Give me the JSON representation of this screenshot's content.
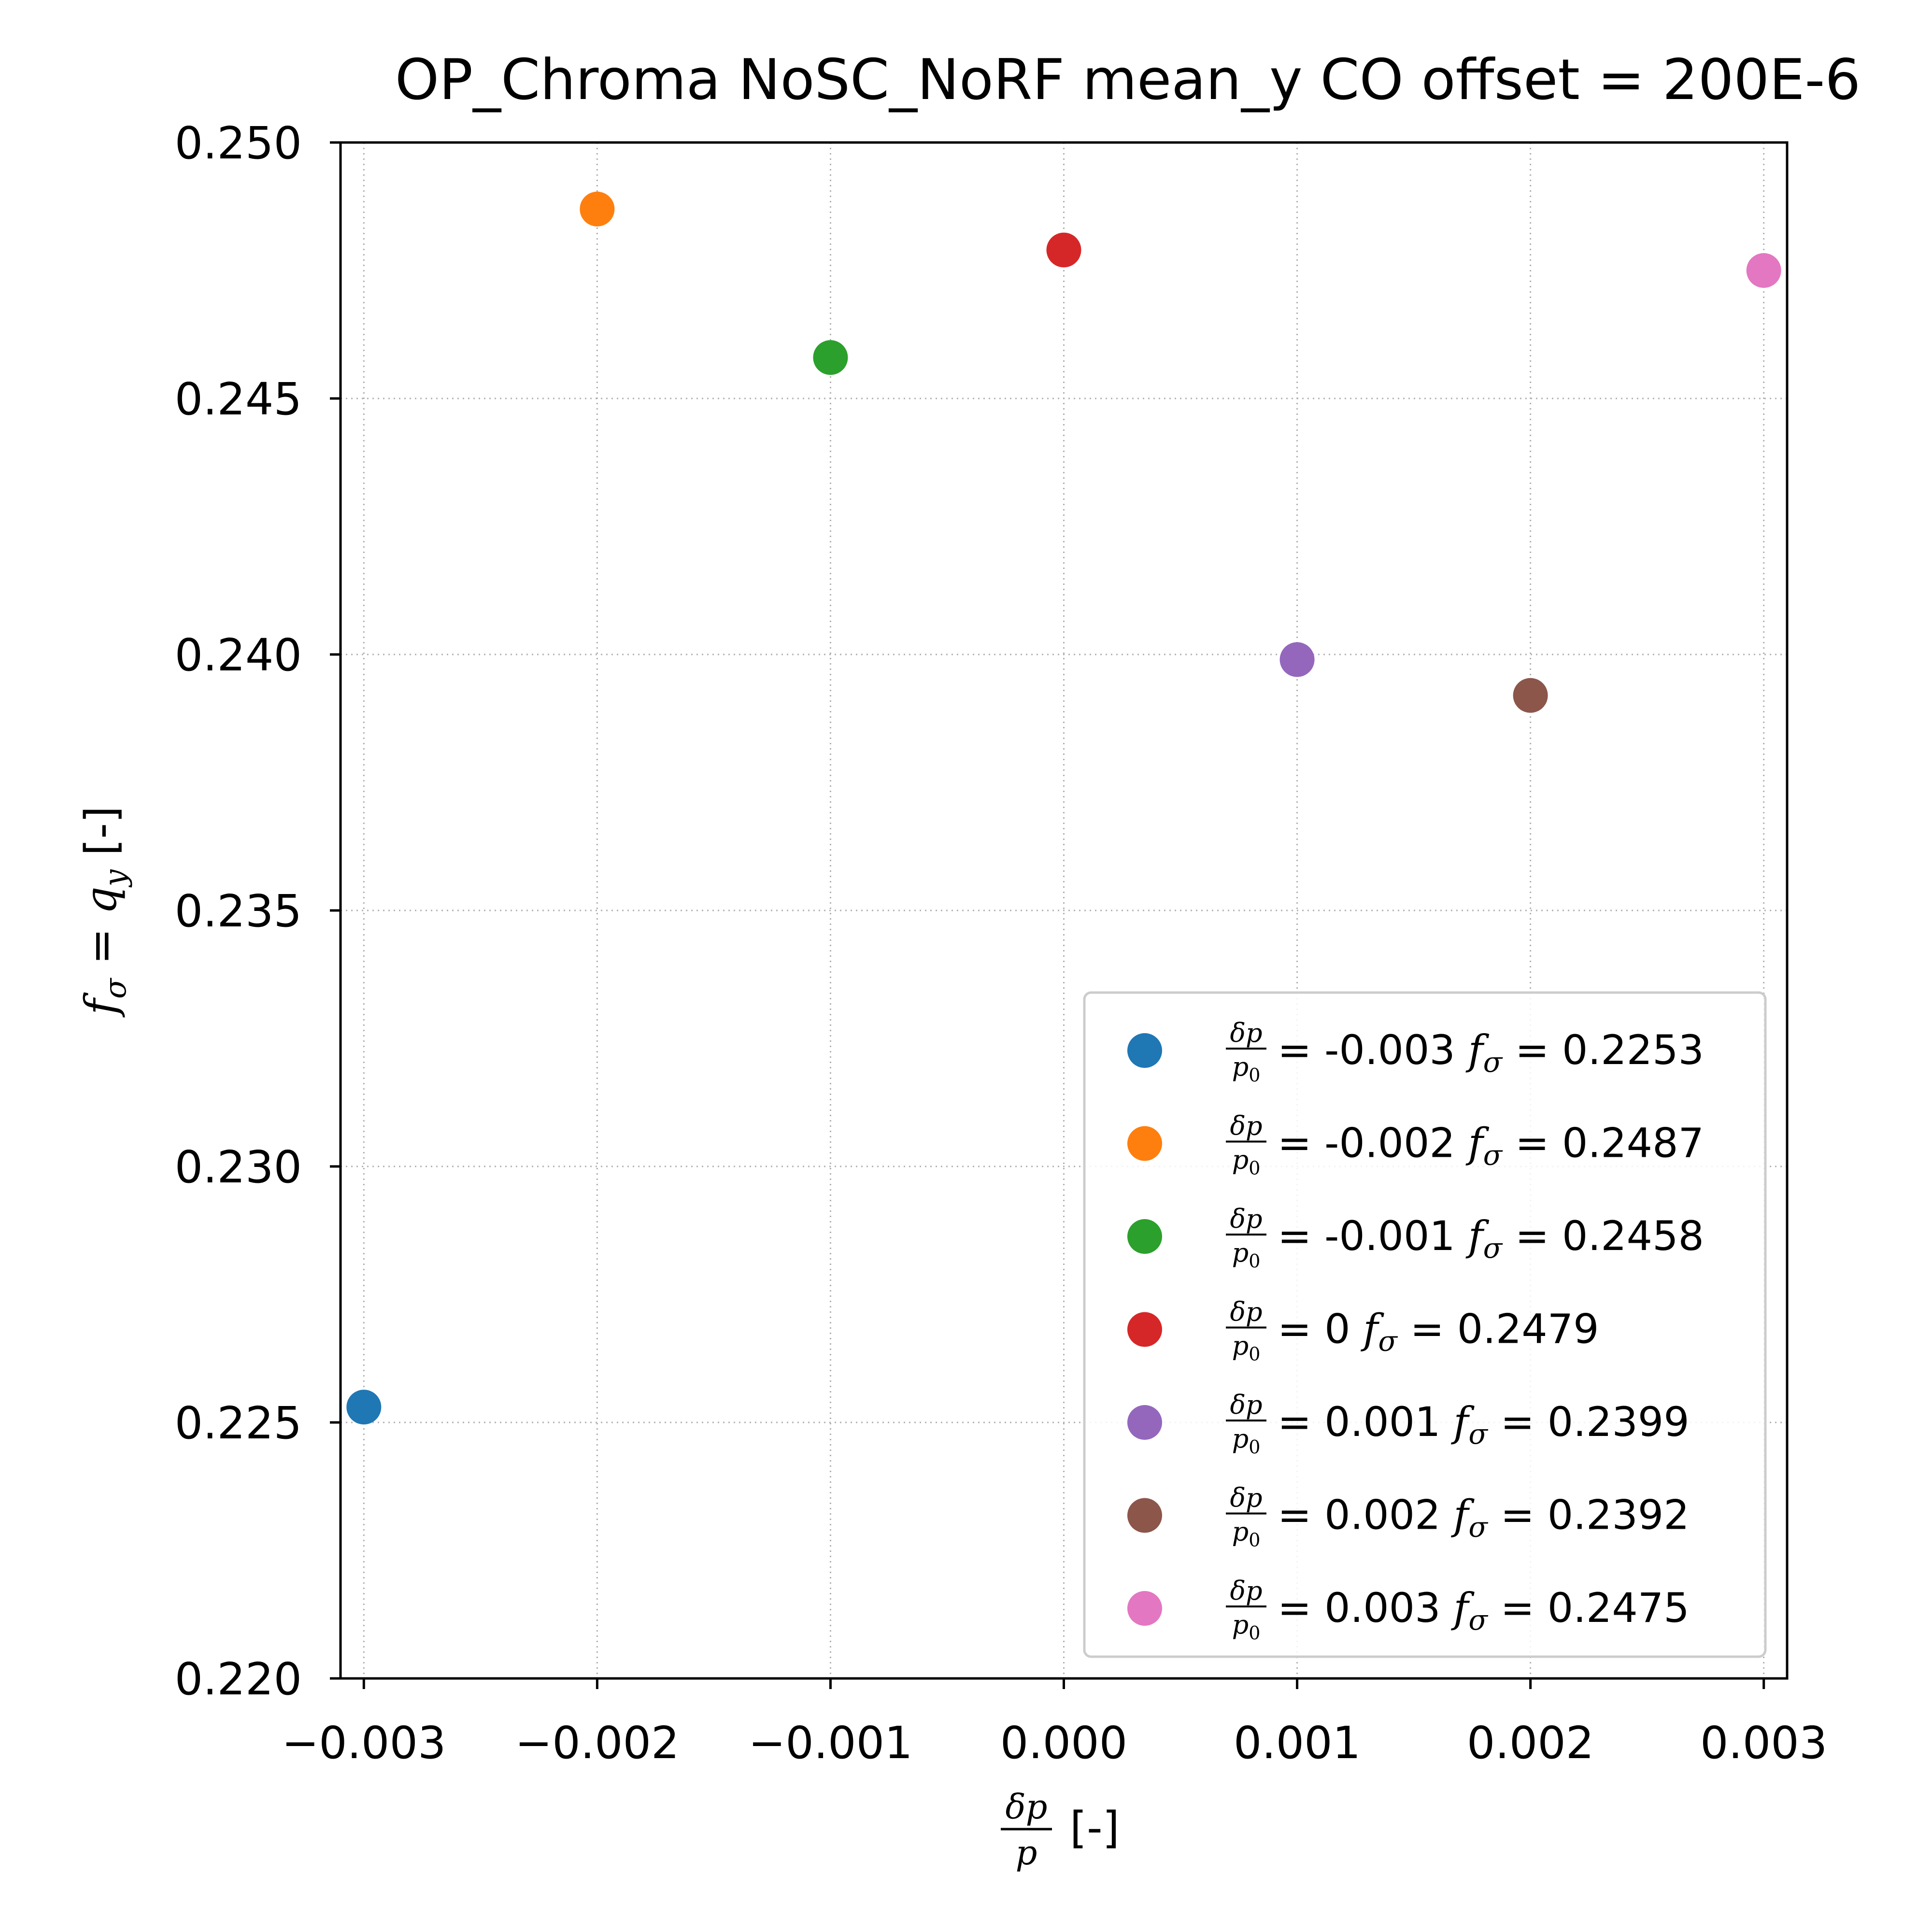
{
  "chart_data": {
    "type": "scatter",
    "title": "OP_Chroma NoSC_NoRF mean_y CO offset = 200E-6",
    "xlabel": {
      "numerator": "δp",
      "denominator": "p",
      "unit": "[-]"
    },
    "ylabel": {
      "lhs": "f",
      "lhs_sub": "σ",
      "rhs": "q",
      "rhs_sub": "y",
      "unit": "[-]"
    },
    "xlim": [
      -0.0031,
      0.0031
    ],
    "ylim": [
      0.22,
      0.25
    ],
    "xticks": [
      -0.003,
      -0.002,
      -0.001,
      0.0,
      0.001,
      0.002,
      0.003
    ],
    "xtick_labels": [
      "−0.003",
      "−0.002",
      "−0.001",
      "0.000",
      "0.001",
      "0.002",
      "0.003"
    ],
    "yticks": [
      0.22,
      0.225,
      0.23,
      0.235,
      0.24,
      0.245,
      0.25
    ],
    "ytick_labels": [
      "0.220",
      "0.225",
      "0.230",
      "0.235",
      "0.240",
      "0.245",
      "0.250"
    ],
    "grid": true,
    "legend_position": "lower-right",
    "legend_symbols": {
      "frac_num": "δp",
      "frac_den": "p",
      "frac_den_sub": "0",
      "f": "f",
      "f_sub": "σ"
    },
    "series": [
      {
        "x": -0.003,
        "y": 0.2253,
        "color": "#1f77b4",
        "dp_label": "-0.003",
        "f_label": "0.2253"
      },
      {
        "x": -0.002,
        "y": 0.2487,
        "color": "#ff7f0e",
        "dp_label": "-0.002",
        "f_label": "0.2487"
      },
      {
        "x": -0.001,
        "y": 0.2458,
        "color": "#2ca02c",
        "dp_label": "-0.001",
        "f_label": "0.2458"
      },
      {
        "x": 0.0,
        "y": 0.2479,
        "color": "#d62728",
        "dp_label": "0",
        "f_label": "0.2479"
      },
      {
        "x": 0.001,
        "y": 0.2399,
        "color": "#9467bd",
        "dp_label": "0.001",
        "f_label": "0.2399"
      },
      {
        "x": 0.002,
        "y": 0.2392,
        "color": "#8c564b",
        "dp_label": "0.002",
        "f_label": "0.2392"
      },
      {
        "x": 0.003,
        "y": 0.2475,
        "color": "#e377c2",
        "dp_label": "0.003",
        "f_label": "0.2475"
      }
    ]
  }
}
